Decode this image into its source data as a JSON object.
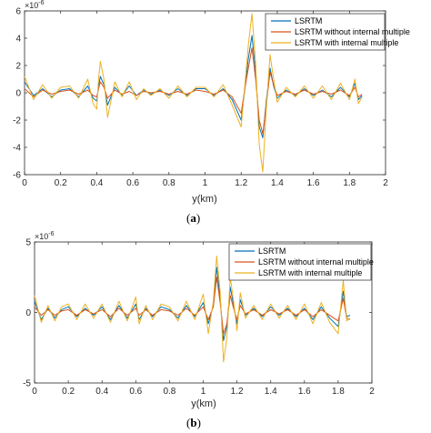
{
  "colors": {
    "lsrtm": "#0072BD",
    "without": "#D95319",
    "with": "#EDB120",
    "axis": "#262626"
  },
  "chart_data": [
    {
      "type": "line",
      "panel_label": "a",
      "xlabel": "y(km)",
      "ylabel": "",
      "exponent_label": "×10",
      "exponent_power": "-6",
      "xlim": [
        0,
        2
      ],
      "ylim": [
        -6,
        6
      ],
      "xticks": [
        "0",
        "0.2",
        "0.4",
        "0.6",
        "0.8",
        "1",
        "1.2",
        "1.4",
        "1.6",
        "1.8",
        "2"
      ],
      "yticks": [
        "6",
        "4",
        "2",
        "0",
        "-2",
        "-4",
        "-6"
      ],
      "legend_position": "top-right",
      "x": [
        0,
        0.05,
        0.1,
        0.15,
        0.2,
        0.25,
        0.3,
        0.35,
        0.38,
        0.4,
        0.41,
        0.42,
        0.44,
        0.46,
        0.5,
        0.54,
        0.58,
        0.62,
        0.66,
        0.7,
        0.75,
        0.8,
        0.85,
        0.9,
        0.95,
        1.0,
        1.05,
        1.1,
        1.15,
        1.2,
        1.22,
        1.24,
        1.26,
        1.28,
        1.3,
        1.32,
        1.34,
        1.36,
        1.38,
        1.4,
        1.45,
        1.5,
        1.55,
        1.6,
        1.65,
        1.7,
        1.75,
        1.8,
        1.83,
        1.85,
        1.87
      ],
      "series": [
        {
          "name": "LSRTM",
          "values": [
            0.8,
            -0.2,
            0.3,
            -0.3,
            0.2,
            0.3,
            -0.3,
            0.5,
            -0.4,
            -0.6,
            0.5,
            1.2,
            0.6,
            -0.9,
            0.4,
            -0.2,
            0.5,
            -0.2,
            0.2,
            -0.1,
            0.2,
            -0.2,
            0.3,
            -0.2,
            0.3,
            0.3,
            -0.2,
            0.3,
            -0.5,
            -2.0,
            0.2,
            2.5,
            4.2,
            1.5,
            -2.5,
            -3.3,
            -0.5,
            1.8,
            0.5,
            -0.4,
            0.2,
            -0.2,
            0.3,
            -0.2,
            0.2,
            -0.3,
            0.4,
            -0.3,
            0.7,
            -0.5,
            -0.2
          ]
        },
        {
          "name": "LSRTM without internal multiple",
          "values": [
            0.3,
            -0.3,
            0.2,
            -0.1,
            0.1,
            0.2,
            -0.1,
            0.2,
            -0.2,
            -0.3,
            0.3,
            0.8,
            0.4,
            -0.4,
            0.2,
            -0.1,
            0.1,
            -0.2,
            0.1,
            0.0,
            0.1,
            -0.1,
            0.1,
            -0.1,
            0.2,
            0.1,
            -0.1,
            0.2,
            -0.3,
            -1.5,
            0.3,
            1.8,
            3.3,
            1.0,
            -2.0,
            -3.0,
            -0.8,
            1.5,
            0.6,
            -0.2,
            0.1,
            -0.1,
            0.2,
            -0.1,
            0.1,
            -0.1,
            0.2,
            -0.2,
            0.4,
            -0.3,
            -0.1
          ]
        },
        {
          "name": "LSRTM with internal multiple",
          "values": [
            1.2,
            -0.5,
            0.6,
            -0.4,
            0.4,
            0.5,
            -0.4,
            1.0,
            -0.8,
            -1.2,
            1.0,
            2.3,
            1.0,
            -1.8,
            0.8,
            -0.3,
            0.8,
            -0.5,
            0.3,
            -0.2,
            0.3,
            -0.4,
            0.5,
            -0.3,
            0.4,
            0.4,
            -0.3,
            0.6,
            -0.9,
            -2.5,
            0.5,
            3.5,
            5.8,
            2.2,
            -3.8,
            -5.8,
            -1.0,
            2.8,
            1.0,
            -0.7,
            0.4,
            -0.3,
            0.5,
            -0.4,
            0.5,
            -0.5,
            0.7,
            -0.5,
            1.0,
            -0.8,
            -0.3
          ]
        }
      ]
    },
    {
      "type": "line",
      "panel_label": "b",
      "xlabel": "y(km)",
      "ylabel": "",
      "exponent_label": "×10",
      "exponent_power": "-6",
      "xlim": [
        0,
        2
      ],
      "ylim": [
        -5,
        5
      ],
      "xticks": [
        "0",
        "0.2",
        "0.4",
        "0.6",
        "0.8",
        "1",
        "1.2",
        "1.4",
        "1.6",
        "1.8",
        "2"
      ],
      "yticks": [
        "5",
        "0",
        "-5"
      ],
      "legend_position": "top-right",
      "x": [
        0,
        0.04,
        0.08,
        0.12,
        0.16,
        0.2,
        0.25,
        0.3,
        0.35,
        0.4,
        0.45,
        0.5,
        0.55,
        0.6,
        0.62,
        0.66,
        0.7,
        0.75,
        0.8,
        0.85,
        0.9,
        0.95,
        1.0,
        1.03,
        1.06,
        1.08,
        1.1,
        1.12,
        1.14,
        1.16,
        1.18,
        1.2,
        1.22,
        1.25,
        1.3,
        1.35,
        1.4,
        1.45,
        1.5,
        1.55,
        1.6,
        1.65,
        1.7,
        1.75,
        1.8,
        1.83,
        1.85,
        1.87
      ],
      "series": [
        {
          "name": "LSRTM",
          "values": [
            0.8,
            -0.5,
            0.3,
            -0.4,
            0.2,
            0.4,
            -0.3,
            0.3,
            -0.2,
            0.4,
            -0.5,
            0.5,
            -0.4,
            0.6,
            -0.5,
            0.3,
            -0.3,
            0.4,
            0.2,
            -0.4,
            0.5,
            -0.3,
            0.7,
            -0.8,
            0.5,
            3.2,
            1.0,
            -2.0,
            -1.0,
            1.8,
            0.5,
            -0.8,
            0.9,
            -0.2,
            0.3,
            -0.3,
            0.4,
            -0.2,
            0.3,
            -0.3,
            0.3,
            -0.5,
            0.4,
            -0.4,
            -1.0,
            1.5,
            -0.3,
            -0.2
          ]
        },
        {
          "name": "LSRTM without internal multiple",
          "values": [
            0.4,
            -0.2,
            0.2,
            -0.2,
            0.1,
            0.2,
            -0.2,
            0.2,
            -0.1,
            0.2,
            -0.3,
            0.3,
            -0.2,
            0.3,
            -0.2,
            0.2,
            -0.2,
            0.2,
            0.1,
            -0.2,
            0.3,
            -0.2,
            0.4,
            -0.5,
            0.4,
            2.5,
            0.7,
            -1.5,
            -0.8,
            1.2,
            0.3,
            -0.5,
            0.5,
            -0.1,
            0.2,
            -0.2,
            0.2,
            -0.1,
            0.2,
            -0.2,
            0.2,
            -0.3,
            0.2,
            -0.2,
            -0.6,
            1.0,
            -0.4,
            -0.5
          ]
        },
        {
          "name": "LSRTM with internal multiple",
          "values": [
            1.2,
            -0.7,
            0.5,
            -0.6,
            0.4,
            0.6,
            -0.5,
            0.6,
            -0.4,
            0.6,
            -0.7,
            0.8,
            -0.6,
            1.1,
            -0.8,
            0.5,
            -0.5,
            0.6,
            0.4,
            -0.6,
            0.8,
            -0.5,
            1.3,
            -1.5,
            0.8,
            4.0,
            1.5,
            -3.5,
            -1.8,
            2.5,
            0.8,
            -1.3,
            1.4,
            -0.4,
            0.5,
            -0.5,
            0.6,
            -0.4,
            0.5,
            -0.5,
            0.6,
            -0.8,
            0.7,
            -0.7,
            -1.5,
            2.3,
            -0.6,
            -0.4
          ]
        }
      ]
    }
  ]
}
